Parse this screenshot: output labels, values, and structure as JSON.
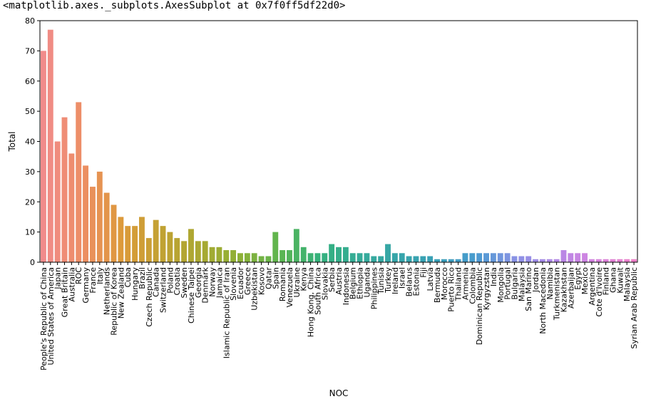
{
  "output_line": "<matplotlib.axes._subplots.AxesSubplot at 0x7f0ff5df22d0>",
  "chart_data": {
    "type": "bar",
    "xlabel": "NOC",
    "ylabel": "Total",
    "ylim": [
      0,
      80
    ],
    "yticks": [
      0,
      10,
      20,
      30,
      40,
      50,
      60,
      70,
      80
    ],
    "grid": false,
    "categories": [
      "People's Republic of China",
      "United States of America",
      "Japan",
      "Great Britain",
      "Australia",
      "ROC",
      "Germany",
      "France",
      "Italy",
      "Netherlands",
      "Republic of Korea",
      "New Zealand",
      "Cuba",
      "Hungary",
      "Brazil",
      "Czech Republic",
      "Canada",
      "Switzerland",
      "Poland",
      "Croatia",
      "Sweden",
      "Chinese Taipei",
      "Georgia",
      "Denmark",
      "Norway",
      "Jamaica",
      "Islamic Republic of Iran",
      "Slovenia",
      "Ecuador",
      "Greece",
      "Uzbekistan",
      "Kosovo",
      "Qatar",
      "Spain",
      "Romania",
      "Venezuela",
      "Ukraine",
      "Kenya",
      "Hong Kong, China",
      "South Africa",
      "Slovakia",
      "Serbia",
      "Austria",
      "Indonesia",
      "Belgium",
      "Ethiopia",
      "Uganda",
      "Philippines",
      "Tunisia",
      "Turkey",
      "Ireland",
      "Israel",
      "Belarus",
      "Estonia",
      "Fiji",
      "Latvia",
      "Bermuda",
      "Morocco",
      "Puerto Rico",
      "Thailand",
      "Armenia",
      "Colombia",
      "Dominican Republic",
      "Kyrgyzstan",
      "India",
      "Mongolia",
      "Portugal",
      "Bulgaria",
      "Malaysia",
      "San Marino",
      "Jordan",
      "North Macedonia",
      "Namibia",
      "Turkmenistan",
      "Kazakhstan",
      "Azerbaijan",
      "Egypt",
      "Mexico",
      "Argentina",
      "Cote d'Ivoire",
      "Finland",
      "Ghana",
      "Kuwait",
      "Malaysia",
      "Syrian Arab Republic"
    ],
    "values": [
      70,
      77,
      40,
      48,
      36,
      53,
      32,
      25,
      30,
      23,
      19,
      15,
      12,
      12,
      15,
      8,
      14,
      12,
      10,
      8,
      7,
      11,
      7,
      7,
      5,
      5,
      4,
      4,
      3,
      3,
      3,
      2,
      2,
      10,
      4,
      4,
      11,
      5,
      3,
      3,
      3,
      6,
      5,
      5,
      3,
      3,
      3,
      2,
      2,
      6,
      3,
      3,
      2,
      2,
      2,
      2,
      1,
      1,
      1,
      1,
      3,
      3,
      3,
      3,
      3,
      3,
      3,
      2,
      2,
      2,
      1,
      1,
      1,
      1,
      4,
      3,
      3,
      3,
      1,
      1,
      1,
      1,
      1,
      1,
      1
    ],
    "palette": [
      "#f18b8b",
      "#ed8e64",
      "#dc9a3a",
      "#c1a233",
      "#a9a832",
      "#8db137",
      "#5db550",
      "#34b17c",
      "#35ab98",
      "#37a5a9",
      "#39a0b8",
      "#4a9bd0",
      "#8b93e6",
      "#b287e6",
      "#d683e0",
      "#ee80c9"
    ]
  }
}
